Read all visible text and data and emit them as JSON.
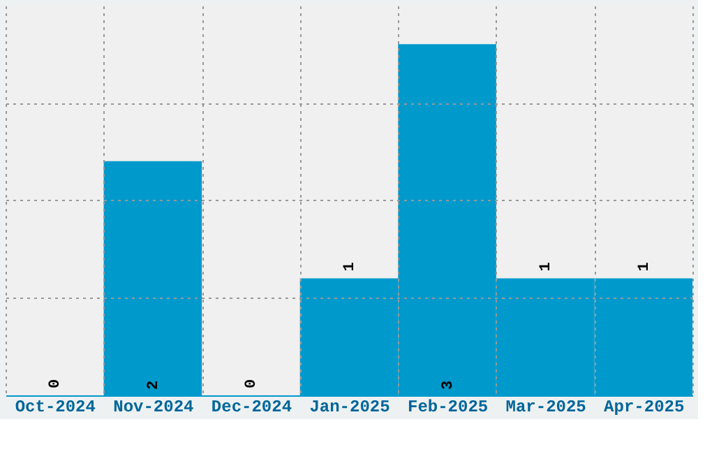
{
  "chart_data": {
    "type": "bar",
    "categories": [
      "Oct-2024",
      "Nov-2024",
      "Dec-2024",
      "Jan-2025",
      "Feb-2025",
      "Mar-2025",
      "Apr-2025"
    ],
    "values": [
      0,
      2,
      0,
      1,
      3,
      1,
      1
    ],
    "color": "#0099cc",
    "ylim": [
      0,
      3.33
    ],
    "yticks": [
      {
        "value": 0.83,
        "label": null
      },
      {
        "value": 1.67,
        "label": null
      },
      {
        "value": 2.5,
        "label": null
      }
    ],
    "grid": true,
    "tick_labels": "x",
    "data_labels": true
  }
}
